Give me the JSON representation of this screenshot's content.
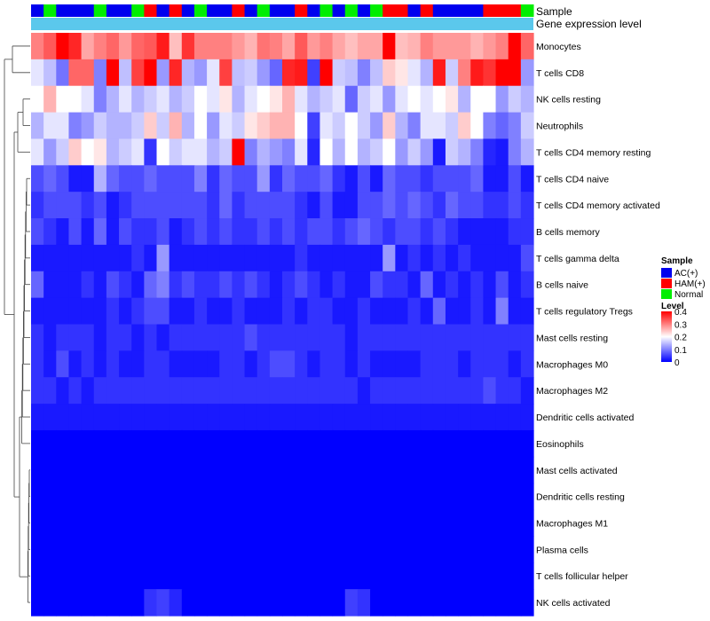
{
  "chart_data": {
    "type": "heatmap",
    "title": "",
    "column_annotation": {
      "name": "Sample",
      "colors": {
        "AC(+)": "#0000ee",
        "HAM(+)": "#ff0000",
        "Normal": "#00ee00"
      },
      "values": [
        "AC(+)",
        "Normal",
        "AC(+)",
        "AC(+)",
        "AC(+)",
        "Normal",
        "AC(+)",
        "AC(+)",
        "Normal",
        "HAM(+)",
        "AC(+)",
        "HAM(+)",
        "AC(+)",
        "Normal",
        "AC(+)",
        "AC(+)",
        "HAM(+)",
        "AC(+)",
        "Normal",
        "AC(+)",
        "AC(+)",
        "HAM(+)",
        "AC(+)",
        "Normal",
        "AC(+)",
        "Normal",
        "AC(+)",
        "Normal",
        "HAM(+)",
        "HAM(+)",
        "AC(+)",
        "HAM(+)",
        "AC(+)",
        "AC(+)",
        "AC(+)",
        "AC(+)",
        "HAM(+)",
        "HAM(+)",
        "HAM(+)",
        "Normal"
      ]
    },
    "second_annotation": {
      "name": "Gene expression level",
      "color": "#5bc8ec"
    },
    "rows": [
      "Monocytes",
      "T cells CD8",
      "NK cells resting",
      "Neutrophils",
      "T cells CD4 memory resting",
      "T cells CD4 naive",
      "T cells CD4 memory activated",
      "B cells memory",
      "T cells gamma delta",
      "B cells naive",
      "T cells regulatory  Tregs",
      "Mast cells resting",
      "Macrophages M0",
      "Macrophages M2",
      "Dendritic cells activated",
      "Eosinophils",
      "Mast cells activated",
      "Dendritic cells resting",
      "Macrophages M1",
      "Plasma cells",
      "T cells follicular helper",
      "NK cells activated"
    ],
    "color_scale": {
      "min": 0,
      "mid": 0.2,
      "max": 0.4,
      "low": "#0000ff",
      "midcolor": "#ffffff",
      "high": "#ff0000"
    },
    "matrix": [
      [
        0.3,
        0.33,
        0.4,
        0.37,
        0.27,
        0.3,
        0.32,
        0.28,
        0.32,
        0.33,
        0.38,
        0.25,
        0.36,
        0.3,
        0.3,
        0.3,
        0.28,
        0.26,
        0.31,
        0.3,
        0.27,
        0.33,
        0.28,
        0.3,
        0.27,
        0.25,
        0.27,
        0.27,
        0.4,
        0.25,
        0.26,
        0.3,
        0.28,
        0.28,
        0.28,
        0.26,
        0.28,
        0.3,
        0.4,
        0.32
      ],
      [
        0.18,
        0.15,
        0.09,
        0.32,
        0.32,
        0.1,
        0.4,
        0.15,
        0.35,
        0.4,
        0.12,
        0.37,
        0.14,
        0.12,
        0.18,
        0.35,
        0.15,
        0.16,
        0.12,
        0.08,
        0.37,
        0.38,
        0.05,
        0.4,
        0.16,
        0.15,
        0.1,
        0.15,
        0.24,
        0.22,
        0.18,
        0.14,
        0.38,
        0.16,
        0.3,
        0.38,
        0.36,
        0.4,
        0.4,
        0.12
      ],
      [
        0.2,
        0.26,
        0.2,
        0.2,
        0.18,
        0.1,
        0.14,
        0.18,
        0.14,
        0.16,
        0.18,
        0.14,
        0.16,
        0.2,
        0.18,
        0.22,
        0.14,
        0.18,
        0.2,
        0.22,
        0.26,
        0.18,
        0.14,
        0.16,
        0.18,
        0.08,
        0.16,
        0.18,
        0.12,
        0.18,
        0.2,
        0.18,
        0.2,
        0.22,
        0.14,
        0.2,
        0.2,
        0.12,
        0.16,
        0.14
      ],
      [
        0.14,
        0.18,
        0.18,
        0.1,
        0.12,
        0.16,
        0.14,
        0.14,
        0.16,
        0.24,
        0.16,
        0.26,
        0.14,
        0.2,
        0.12,
        0.18,
        0.16,
        0.22,
        0.24,
        0.26,
        0.26,
        0.2,
        0.05,
        0.18,
        0.16,
        0.2,
        0.16,
        0.12,
        0.24,
        0.14,
        0.1,
        0.18,
        0.18,
        0.16,
        0.24,
        0.2,
        0.1,
        0.08,
        0.1,
        0.16
      ],
      [
        0.18,
        0.12,
        0.16,
        0.24,
        0.2,
        0.22,
        0.14,
        0.16,
        0.18,
        0.04,
        0.2,
        0.16,
        0.18,
        0.18,
        0.14,
        0.16,
        0.4,
        0.1,
        0.14,
        0.12,
        0.1,
        0.18,
        0.03,
        0.2,
        0.14,
        0.2,
        0.14,
        0.16,
        0.2,
        0.12,
        0.16,
        0.12,
        0.02,
        0.16,
        0.14,
        0.1,
        0.03,
        0.02,
        0.1,
        0.14
      ],
      [
        0.06,
        0.08,
        0.06,
        0.02,
        0.02,
        0.14,
        0.08,
        0.06,
        0.06,
        0.08,
        0.06,
        0.06,
        0.06,
        0.1,
        0.04,
        0.08,
        0.06,
        0.06,
        0.12,
        0.04,
        0.08,
        0.06,
        0.06,
        0.08,
        0.04,
        0.02,
        0.06,
        0.02,
        0.08,
        0.06,
        0.06,
        0.04,
        0.06,
        0.06,
        0.06,
        0.08,
        0.02,
        0.02,
        0.06,
        0.02
      ],
      [
        0.04,
        0.06,
        0.06,
        0.06,
        0.04,
        0.06,
        0.02,
        0.04,
        0.06,
        0.06,
        0.06,
        0.06,
        0.06,
        0.06,
        0.04,
        0.08,
        0.04,
        0.06,
        0.06,
        0.06,
        0.06,
        0.04,
        0.02,
        0.06,
        0.02,
        0.02,
        0.06,
        0.06,
        0.08,
        0.06,
        0.08,
        0.06,
        0.04,
        0.08,
        0.06,
        0.06,
        0.04,
        0.04,
        0.06,
        0.04
      ],
      [
        0.06,
        0.04,
        0.02,
        0.06,
        0.02,
        0.08,
        0.02,
        0.06,
        0.04,
        0.04,
        0.06,
        0.02,
        0.04,
        0.06,
        0.04,
        0.06,
        0.04,
        0.04,
        0.06,
        0.04,
        0.06,
        0.04,
        0.06,
        0.06,
        0.04,
        0.06,
        0.08,
        0.06,
        0.04,
        0.06,
        0.06,
        0.04,
        0.06,
        0.04,
        0.02,
        0.02,
        0.02,
        0.02,
        0.04,
        0.04
      ],
      [
        0.02,
        0.02,
        0.02,
        0.02,
        0.02,
        0.02,
        0.02,
        0.02,
        0.04,
        0.02,
        0.12,
        0.02,
        0.02,
        0.02,
        0.02,
        0.02,
        0.02,
        0.02,
        0.02,
        0.02,
        0.02,
        0.04,
        0.02,
        0.02,
        0.02,
        0.02,
        0.02,
        0.02,
        0.12,
        0.02,
        0.04,
        0.02,
        0.04,
        0.02,
        0.04,
        0.02,
        0.02,
        0.02,
        0.02,
        0.06
      ],
      [
        0.08,
        0.02,
        0.02,
        0.02,
        0.04,
        0.02,
        0.06,
        0.04,
        0.02,
        0.08,
        0.1,
        0.04,
        0.06,
        0.04,
        0.04,
        0.06,
        0.04,
        0.06,
        0.04,
        0.02,
        0.04,
        0.06,
        0.04,
        0.02,
        0.04,
        0.02,
        0.02,
        0.06,
        0.04,
        0.04,
        0.02,
        0.08,
        0.02,
        0.04,
        0.02,
        0.04,
        0.02,
        0.06,
        0.02,
        0.04
      ],
      [
        0.02,
        0.02,
        0.02,
        0.02,
        0.02,
        0.02,
        0.04,
        0.02,
        0.04,
        0.06,
        0.06,
        0.02,
        0.02,
        0.04,
        0.02,
        0.02,
        0.04,
        0.02,
        0.02,
        0.02,
        0.04,
        0.02,
        0.04,
        0.04,
        0.02,
        0.02,
        0.04,
        0.02,
        0.02,
        0.02,
        0.04,
        0.02,
        0.08,
        0.02,
        0.02,
        0.04,
        0.02,
        0.1,
        0.02,
        0.02
      ],
      [
        0.04,
        0.02,
        0.04,
        0.04,
        0.04,
        0.02,
        0.04,
        0.04,
        0.02,
        0.04,
        0.02,
        0.04,
        0.04,
        0.04,
        0.04,
        0.04,
        0.04,
        0.06,
        0.04,
        0.04,
        0.04,
        0.04,
        0.04,
        0.04,
        0.04,
        0.02,
        0.04,
        0.04,
        0.04,
        0.04,
        0.04,
        0.04,
        0.04,
        0.04,
        0.04,
        0.04,
        0.04,
        0.04,
        0.04,
        0.04
      ],
      [
        0.04,
        0.02,
        0.06,
        0.02,
        0.04,
        0.02,
        0.04,
        0.02,
        0.02,
        0.04,
        0.04,
        0.02,
        0.02,
        0.02,
        0.02,
        0.04,
        0.04,
        0.02,
        0.04,
        0.06,
        0.06,
        0.04,
        0.02,
        0.04,
        0.04,
        0.02,
        0.04,
        0.02,
        0.02,
        0.02,
        0.02,
        0.04,
        0.04,
        0.04,
        0.02,
        0.04,
        0.04,
        0.04,
        0.02,
        0.04
      ],
      [
        0.04,
        0.04,
        0.02,
        0.04,
        0.02,
        0.04,
        0.04,
        0.04,
        0.04,
        0.04,
        0.04,
        0.04,
        0.04,
        0.04,
        0.04,
        0.04,
        0.04,
        0.04,
        0.04,
        0.04,
        0.04,
        0.04,
        0.04,
        0.04,
        0.04,
        0.04,
        0.02,
        0.04,
        0.04,
        0.04,
        0.04,
        0.04,
        0.04,
        0.04,
        0.04,
        0.04,
        0.06,
        0.04,
        0.04,
        0.02
      ],
      [
        0.02,
        0.02,
        0.02,
        0.02,
        0.02,
        0.02,
        0.02,
        0.02,
        0.02,
        0.02,
        0.02,
        0.02,
        0.02,
        0.02,
        0.02,
        0.02,
        0.02,
        0.02,
        0.02,
        0.02,
        0.02,
        0.02,
        0.02,
        0.02,
        0.02,
        0.02,
        0.02,
        0.02,
        0.02,
        0.02,
        0.02,
        0.02,
        0.02,
        0.02,
        0.02,
        0.02,
        0.02,
        0.02,
        0.02,
        0.02
      ],
      [
        0,
        0,
        0,
        0,
        0,
        0,
        0,
        0,
        0,
        0,
        0,
        0,
        0,
        0,
        0,
        0,
        0,
        0,
        0,
        0,
        0,
        0,
        0,
        0,
        0,
        0,
        0,
        0,
        0,
        0,
        0,
        0,
        0,
        0,
        0,
        0,
        0,
        0,
        0,
        0
      ],
      [
        0,
        0,
        0,
        0,
        0,
        0,
        0,
        0,
        0,
        0,
        0,
        0,
        0,
        0,
        0,
        0,
        0,
        0,
        0,
        0,
        0,
        0,
        0,
        0,
        0,
        0,
        0,
        0,
        0,
        0,
        0,
        0,
        0,
        0,
        0,
        0,
        0,
        0,
        0,
        0
      ],
      [
        0,
        0,
        0,
        0,
        0,
        0,
        0,
        0,
        0,
        0,
        0,
        0,
        0,
        0,
        0,
        0,
        0,
        0,
        0,
        0,
        0,
        0,
        0,
        0,
        0,
        0,
        0,
        0,
        0,
        0,
        0,
        0,
        0,
        0,
        0,
        0,
        0,
        0,
        0,
        0
      ],
      [
        0,
        0,
        0,
        0,
        0,
        0,
        0,
        0,
        0,
        0,
        0,
        0,
        0,
        0,
        0,
        0,
        0,
        0,
        0,
        0,
        0,
        0,
        0,
        0,
        0,
        0,
        0,
        0,
        0,
        0,
        0,
        0,
        0,
        0,
        0,
        0,
        0,
        0,
        0,
        0
      ],
      [
        0,
        0,
        0,
        0,
        0,
        0,
        0,
        0,
        0,
        0,
        0,
        0,
        0,
        0,
        0,
        0,
        0,
        0,
        0,
        0,
        0,
        0,
        0,
        0,
        0,
        0,
        0,
        0,
        0,
        0,
        0,
        0,
        0,
        0,
        0,
        0,
        0,
        0,
        0,
        0
      ],
      [
        0,
        0,
        0,
        0,
        0,
        0,
        0,
        0,
        0,
        0,
        0,
        0,
        0,
        0,
        0,
        0,
        0,
        0,
        0,
        0,
        0,
        0,
        0,
        0,
        0,
        0,
        0,
        0,
        0,
        0,
        0,
        0,
        0,
        0,
        0,
        0,
        0,
        0,
        0,
        0
      ],
      [
        0,
        0,
        0,
        0,
        0,
        0,
        0,
        0,
        0,
        0.04,
        0.05,
        0.03,
        0,
        0,
        0,
        0,
        0,
        0,
        0,
        0,
        0,
        0,
        0,
        0,
        0,
        0.05,
        0.04,
        0,
        0,
        0,
        0,
        0,
        0,
        0,
        0,
        0,
        0,
        0,
        0,
        0
      ]
    ],
    "legend": {
      "sample_title": "Sample",
      "sample_entries": [
        "AC(+)",
        "HAM(+)",
        "Normal"
      ],
      "level_title": "Level",
      "level_ticks": [
        "0.4",
        "0.3",
        "0.2",
        "0.1",
        "0"
      ],
      "level_tick_values": [
        0.4,
        0.3,
        0.2,
        0.1,
        0
      ]
    }
  }
}
